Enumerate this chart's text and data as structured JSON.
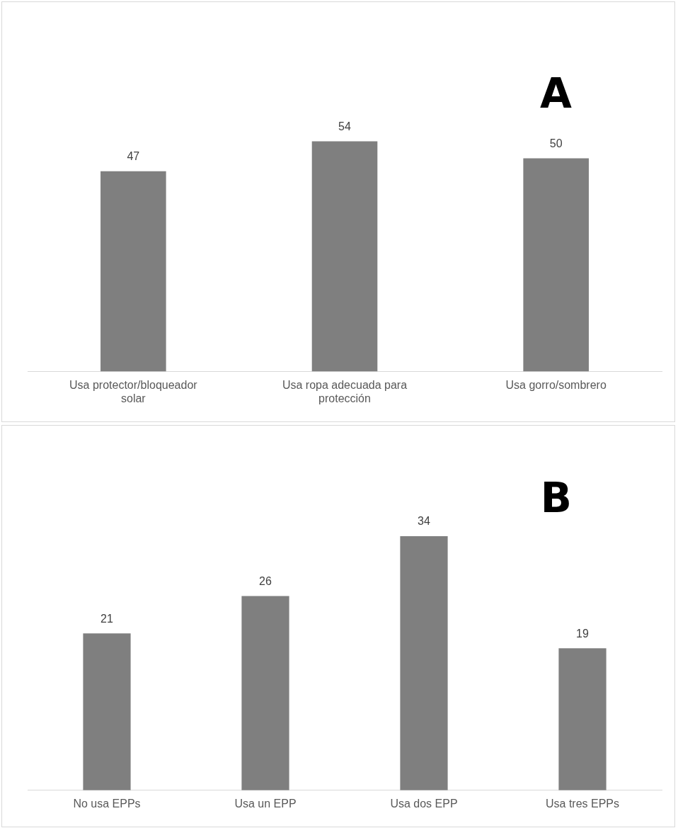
{
  "chart_data": [
    {
      "type": "bar",
      "categories": [
        "Usa protector/bloqueador solar",
        "Usa ropa adecuada para protección",
        "Usa gorro/sombrero"
      ],
      "values": [
        47,
        54,
        50
      ],
      "color": "#7f7f7f",
      "data_labels": true,
      "grid": false,
      "legend": false,
      "tick_labels": "x",
      "annotations": [
        "A"
      ]
    },
    {
      "type": "bar",
      "categories": [
        "No usa EPPs",
        "Usa un EPP",
        "Usa dos EPP",
        "Usa tres EPPs"
      ],
      "values": [
        21,
        26,
        34,
        19
      ],
      "color": "#7f7f7f",
      "data_labels": true,
      "grid": false,
      "legend": false,
      "tick_labels": "x",
      "annotations": [
        "B"
      ]
    }
  ]
}
